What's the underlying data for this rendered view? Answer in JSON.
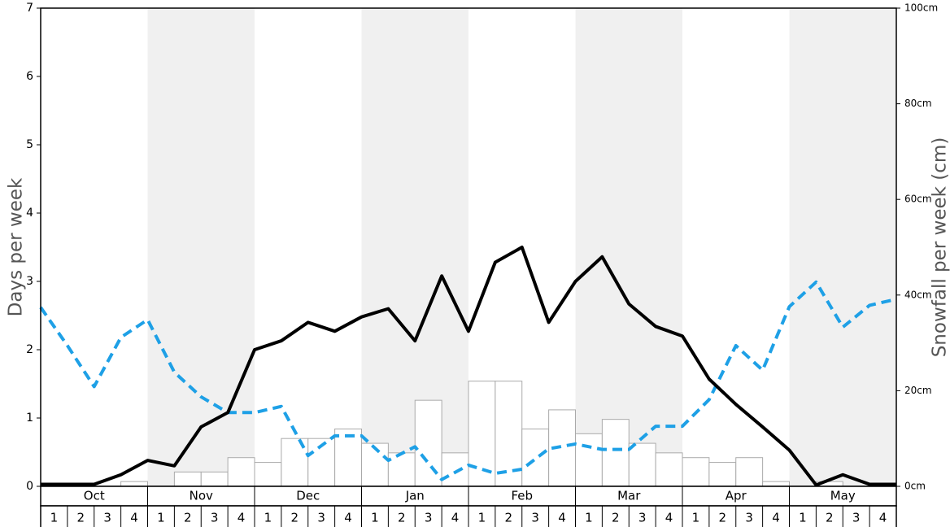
{
  "chart_data": {
    "type": "combo",
    "ylabel": "Days per week",
    "y2label": "Snowfall per week (cm)",
    "ylim": [
      0,
      7
    ],
    "yticks": [
      0,
      1,
      2,
      3,
      4,
      5,
      6,
      7
    ],
    "y2lim": [
      0,
      100
    ],
    "y2ticks": [
      {
        "value": 0,
        "label": "0cm"
      },
      {
        "value": 20,
        "label": "20cm"
      },
      {
        "value": 40,
        "label": "40cm"
      },
      {
        "value": 60,
        "label": "60cm"
      },
      {
        "value": 80,
        "label": "80cm"
      },
      {
        "value": 100,
        "label": "100cm"
      }
    ],
    "months": [
      "Oct",
      "Nov",
      "Dec",
      "Jan",
      "Feb",
      "Mar",
      "Apr",
      "May"
    ],
    "weeks": [
      "1",
      "2",
      "3",
      "4"
    ],
    "shade": "#f0f0f0",
    "series": [
      {
        "type": "bar",
        "axis": "y2",
        "color": "#ffffff",
        "values": [
          0,
          0,
          0,
          1,
          0,
          3,
          3,
          6,
          5,
          10,
          10,
          12,
          9,
          7,
          18,
          7,
          22,
          22,
          12,
          16,
          11,
          14,
          9,
          7,
          6,
          5,
          6,
          1,
          0,
          1,
          0,
          0
        ]
      },
      {
        "type": "line",
        "dash": true,
        "color": "#1ea0e6",
        "values": [
          2.62,
          2.06,
          1.46,
          2.18,
          2.44,
          1.67,
          1.31,
          1.08,
          1.08,
          1.17,
          0.45,
          0.74,
          0.74,
          0.38,
          0.58,
          0.1,
          0.31,
          0.19,
          0.25,
          0.55,
          0.62,
          0.54,
          0.54,
          0.88,
          0.88,
          1.27,
          2.06,
          1.7,
          2.63,
          2.99,
          2.33,
          2.65,
          2.74
        ]
      },
      {
        "type": "line",
        "dash": false,
        "color": "#000000",
        "values": [
          0.03,
          0.03,
          0.03,
          0.17,
          0.38,
          0.3,
          0.87,
          1.08,
          2.0,
          2.13,
          2.4,
          2.27,
          2.48,
          2.6,
          2.13,
          3.08,
          2.27,
          3.28,
          3.5,
          2.4,
          3.0,
          3.36,
          2.67,
          2.34,
          2.2,
          1.57,
          1.2,
          0.87,
          0.53,
          0.02,
          0.17,
          0.03,
          0.03
        ]
      }
    ]
  }
}
